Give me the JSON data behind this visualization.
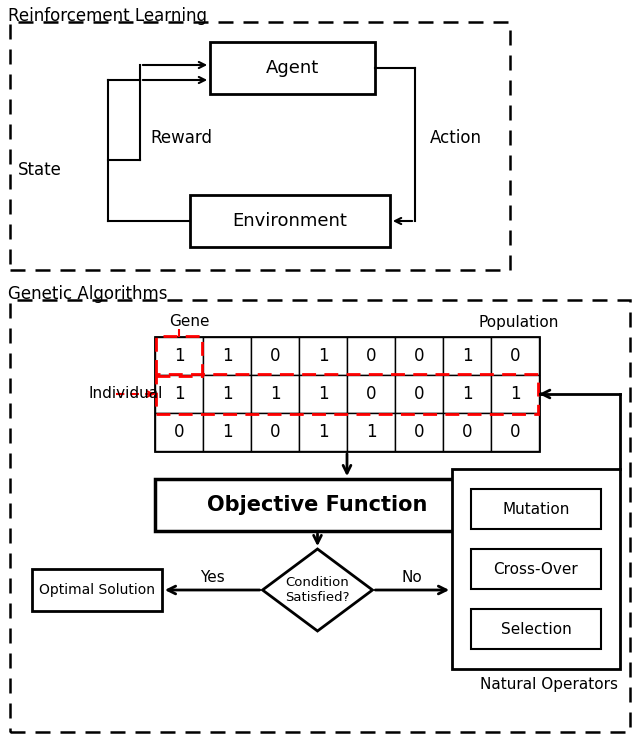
{
  "rl_label": "Reinforcement Learning",
  "ga_label": "Genetic Algorithms",
  "agent_label": "Agent",
  "reward_label": "Reward",
  "environment_label": "Environment",
  "state_label": "State",
  "action_label": "Action",
  "gene_label": "Gene",
  "population_label": "Population",
  "individual_label": "Individual",
  "obj_func_label": "Objective Function",
  "condition_label": "Condition\nSatisfied?",
  "yes_label": "Yes",
  "no_label": "No",
  "optimal_label": "Optimal Solution",
  "mutation_label": "Mutation",
  "crossover_label": "Cross-Over",
  "selection_label": "Selection",
  "natural_ops_label": "Natural Operators",
  "row1": [
    "1",
    "1",
    "0",
    "1",
    "0",
    "0",
    "1",
    "0"
  ],
  "row2": [
    "1",
    "1",
    "1",
    "1",
    "0",
    "0",
    "1",
    "1"
  ],
  "row3": [
    "0",
    "1",
    "0",
    "1",
    "1",
    "0",
    "0",
    "0"
  ],
  "bg_color": "#ffffff",
  "red_dashed": "#ff0000"
}
